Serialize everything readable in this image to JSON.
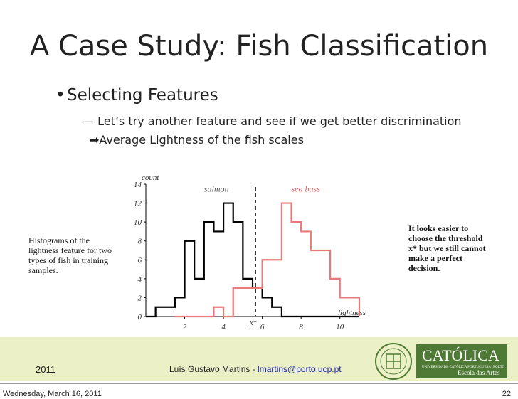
{
  "slide": {
    "title": "A Case Study: Fish Classification",
    "bullet_level1": "Selecting Features",
    "bullet_level2": "Let’s try another feature and see if we get better discrimination",
    "bullet_level3": "Average Lightness of the fish scales",
    "left_note": "Histograms of the lightness feature for two types of fish in training samples.",
    "right_note": "It looks easier to choose the threshold x* but we still cannot make a perfect decision."
  },
  "footer": {
    "year": "2011",
    "author": "Luís Gustavo Martins - ",
    "email": "lmartins@porto.ucp.pt",
    "date": "Wednesday, March 16, 2011",
    "page": "22"
  },
  "logo": {
    "name": "CATÓLICA",
    "subtitle": "UNIVERSIDADE CATÓLICA PORTUGUESA | PORTO",
    "school": "Escola das Artes"
  },
  "chart_data": {
    "type": "line",
    "xlabel": "lightness",
    "ylabel": "count",
    "xlim": [
      0,
      11
    ],
    "ylim": [
      0,
      14
    ],
    "xticks": [
      2,
      4,
      6,
      8,
      10
    ],
    "yticks": [
      0,
      2,
      4,
      6,
      8,
      10,
      12,
      14
    ],
    "threshold_label": "x*",
    "threshold": 5.65,
    "series": [
      {
        "name": "salmon",
        "color": "#000000",
        "x": [
          0,
          0.5,
          1.5,
          2.0,
          2.5,
          3.0,
          3.5,
          4.0,
          4.5,
          5.0,
          5.5,
          6.0,
          6.5,
          7.0,
          11
        ],
        "values": [
          0,
          1,
          2,
          8,
          4,
          10,
          9,
          12,
          10,
          4,
          3,
          2,
          1,
          0,
          0
        ]
      },
      {
        "name": "sea bass",
        "color": "#e87a7a",
        "x": [
          1.5,
          3.5,
          4.0,
          4.5,
          5.0,
          6.0,
          7.0,
          7.5,
          8.0,
          8.5,
          9.5,
          10.0,
          11.0
        ],
        "values": [
          0,
          1,
          0,
          3,
          3,
          6,
          12,
          10,
          9,
          7,
          4,
          2,
          0
        ]
      }
    ]
  }
}
